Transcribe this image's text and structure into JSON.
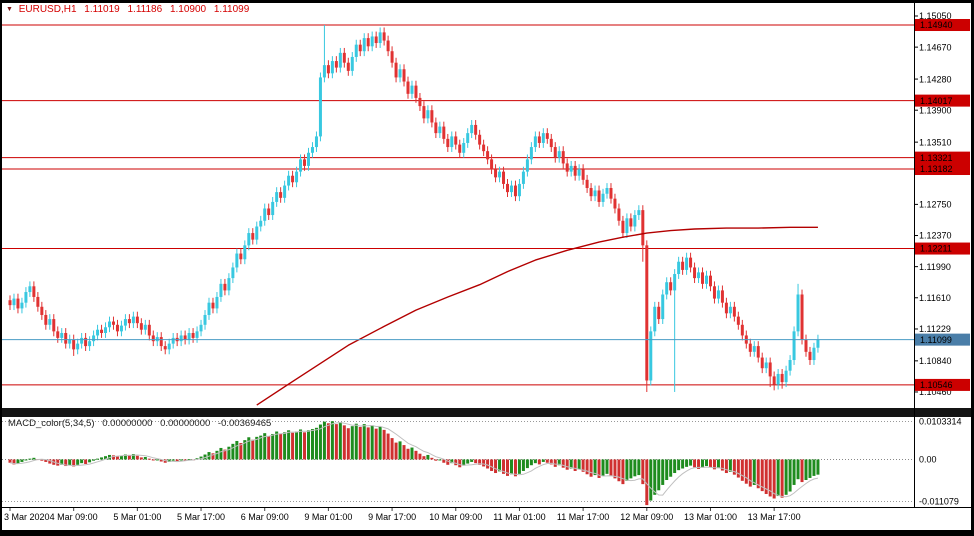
{
  "header": {
    "symbol": "EURUSD,H1",
    "open": "1.11019",
    "high": "1.11186",
    "low": "1.10900",
    "close": "1.11099"
  },
  "colors": {
    "candle_up": "#38C8E0",
    "candle_down": "#E03232",
    "level": "#CC0000",
    "bid_line": "#4A9BC4",
    "bid_badge": "#4A7EA8",
    "ma": "#B30000",
    "macd_up": "#1E8C1E",
    "macd_down": "#D03030",
    "macd_signal": "#C0C0C0",
    "title": "#D40000"
  },
  "chart_data": {
    "type": "candlestick",
    "symbol": "EURUSD",
    "timeframe": "H1",
    "title": "EURUSD,H1 1.11019 1.11186 1.10900 1.11099",
    "x_labels": [
      "3 Mar 2020",
      "4 Mar 09:00",
      "5 Mar 01:00",
      "5 Mar 17:00",
      "6 Mar 09:00",
      "9 Mar 01:00",
      "9 Mar 17:00",
      "10 Mar 09:00",
      "11 Mar 01:00",
      "11 Mar 17:00",
      "12 Mar 09:00",
      "13 Mar 01:00",
      "13 Mar 17:00"
    ],
    "bars_per_label": 16,
    "price_axis_ticks": [
      "1.15050",
      "1.14670",
      "1.14280",
      "1.13900",
      "1.13510",
      "1.12750",
      "1.12370",
      "1.11990",
      "1.11610",
      "1.11229",
      "1.10840",
      "1.10460"
    ],
    "levels": [
      {
        "price": 1.1494,
        "label": "1.14940"
      },
      {
        "price": 1.14017,
        "label": "1.14017"
      },
      {
        "price": 1.13321,
        "label": "1.13321"
      },
      {
        "price": 1.13182,
        "label": "1.13182"
      },
      {
        "price": 1.12211,
        "label": "1.12211"
      },
      {
        "price": 1.10546,
        "label": "1.10546"
      }
    ],
    "bid": {
      "price": 1.11099,
      "label": "1.11099"
    },
    "first_open": 1.1158,
    "default_wick": 0.0006,
    "closes": [
      1.1152,
      1.116,
      1.1148,
      1.1155,
      1.1168,
      1.1175,
      1.1162,
      1.115,
      1.114,
      1.1128,
      1.1135,
      1.112,
      1.1112,
      1.1118,
      1.1105,
      1.111,
      1.1098,
      1.1105,
      1.1112,
      1.1102,
      1.1108,
      1.1115,
      1.1122,
      1.1118,
      1.1125,
      1.1132,
      1.1128,
      1.112,
      1.1127,
      1.1135,
      1.113,
      1.1138,
      1.113,
      1.1122,
      1.1128,
      1.1115,
      1.1108,
      1.1113,
      1.1102,
      1.1098,
      1.1105,
      1.1112,
      1.1108,
      1.1115,
      1.111,
      1.1118,
      1.1112,
      1.112,
      1.1128,
      1.114,
      1.1155,
      1.1148,
      1.1162,
      1.1178,
      1.117,
      1.1185,
      1.1198,
      1.1215,
      1.1208,
      1.1225,
      1.124,
      1.1232,
      1.1248,
      1.1255,
      1.127,
      1.1262,
      1.1278,
      1.129,
      1.1283,
      1.1298,
      1.131,
      1.1302,
      1.1315,
      1.133,
      1.1322,
      1.1338,
      1.1345,
      1.1358,
      1.143,
      1.1445,
      1.1435,
      1.145,
      1.1442,
      1.146,
      1.1448,
      1.1438,
      1.1455,
      1.147,
      1.1462,
      1.1478,
      1.1468,
      1.148,
      1.1472,
      1.1485,
      1.1475,
      1.1462,
      1.1448,
      1.143,
      1.144,
      1.1425,
      1.141,
      1.142,
      1.1405,
      1.1395,
      1.138,
      1.139,
      1.1375,
      1.1362,
      1.137,
      1.1355,
      1.1345,
      1.1358,
      1.1348,
      1.1338,
      1.135,
      1.1362,
      1.1372,
      1.136,
      1.1348,
      1.134,
      1.133,
      1.1318,
      1.1308,
      1.1315,
      1.13,
      1.129,
      1.1298,
      1.1285,
      1.13,
      1.1315,
      1.133,
      1.1345,
      1.1358,
      1.135,
      1.1362,
      1.1355,
      1.1345,
      1.1332,
      1.134,
      1.1325,
      1.1315,
      1.1322,
      1.131,
      1.1318,
      1.1305,
      1.1295,
      1.1285,
      1.1292,
      1.1278,
      1.1288,
      1.1295,
      1.1282,
      1.127,
      1.1255,
      1.124,
      1.1258,
      1.1248,
      1.1262,
      1.1268,
      1.1225,
      1.106,
      1.112,
      1.115,
      1.1135,
      1.1165,
      1.118,
      1.117,
      1.119,
      1.1205,
      1.1195,
      1.121,
      1.1198,
      1.1185,
      1.1192,
      1.1178,
      1.1188,
      1.1175,
      1.116,
      1.117,
      1.1155,
      1.1142,
      1.115,
      1.1138,
      1.1128,
      1.1115,
      1.1105,
      1.1095,
      1.1102,
      1.1088,
      1.1075,
      1.1082,
      1.1065,
      1.1055,
      1.1068,
      1.1058,
      1.1072,
      1.1085,
      1.112,
      1.1165,
      1.111,
      1.1095,
      1.1085,
      1.11,
      1.11099
    ],
    "wick_overrides": {
      "16": {
        "low": 1.109
      },
      "79": {
        "high": 1.1494
      },
      "159": {
        "low": 1.1205
      },
      "160": {
        "low": 1.1046
      },
      "167": {
        "low": 1.1046
      },
      "191": {
        "low": 1.1052
      },
      "192": {
        "low": 1.1048
      },
      "194": {
        "low": 1.105
      },
      "198": {
        "high": 1.1178
      }
    },
    "ma_line": {
      "points": [
        [
          62,
          1.103
        ],
        [
          72,
          1.1062
        ],
        [
          85,
          1.1103
        ],
        [
          94,
          1.1126
        ],
        [
          102,
          1.1146
        ],
        [
          110,
          1.1162
        ],
        [
          118,
          1.1177
        ],
        [
          125,
          1.1193
        ],
        [
          132,
          1.1207
        ],
        [
          140,
          1.1219
        ],
        [
          148,
          1.1229
        ],
        [
          154,
          1.1235
        ],
        [
          160,
          1.124
        ],
        [
          166,
          1.1243
        ],
        [
          172,
          1.1245
        ],
        [
          180,
          1.1246
        ],
        [
          188,
          1.1246
        ],
        [
          196,
          1.1247
        ],
        [
          203,
          1.1247
        ]
      ]
    },
    "macd": {
      "label": "MACD_color(5,34,5)",
      "value_labels": [
        "0.00000000",
        "0.00000000",
        "-0.00369465"
      ],
      "scale_max": 0.0103314,
      "scale_max_label": "0.0103314",
      "zero_label": "0.00",
      "scale_min": -0.011079,
      "scale_min_label": "-0.011079",
      "values": [
        -0.0008,
        -0.0012,
        -0.001,
        -0.0006,
        -0.0002,
        0.0002,
        0.0004,
        0.0001,
        -0.0003,
        -0.0006,
        -0.001,
        -0.0013,
        -0.0015,
        -0.0013,
        -0.0016,
        -0.0014,
        -0.0017,
        -0.0013,
        -0.0009,
        -0.0011,
        -0.0007,
        -0.0003,
        0.0002,
        0.0005,
        0.0008,
        0.0011,
        0.001,
        0.0007,
        0.0009,
        0.0012,
        0.0011,
        0.0013,
        0.0009,
        0.0005,
        0.0006,
        0.0002,
        -0.0002,
        -0.0001,
        -0.0005,
        -0.0008,
        -0.0006,
        -0.0003,
        -0.0004,
        -0.0001,
        -0.0002,
        0.0001,
        0.0,
        0.0003,
        0.0007,
        0.0012,
        0.0018,
        0.0015,
        0.0021,
        0.0028,
        0.0024,
        0.0031,
        0.0038,
        0.0045,
        0.004,
        0.0047,
        0.0054,
        0.0048,
        0.0055,
        0.0058,
        0.0064,
        0.0057,
        0.0062,
        0.0068,
        0.0063,
        0.0066,
        0.0071,
        0.0065,
        0.0068,
        0.0073,
        0.0066,
        0.0071,
        0.0074,
        0.0077,
        0.0085,
        0.0092,
        0.0088,
        0.0093,
        0.0086,
        0.0091,
        0.0083,
        0.0076,
        0.0081,
        0.0087,
        0.0079,
        0.0086,
        0.0078,
        0.0083,
        0.0075,
        0.008,
        0.0072,
        0.0063,
        0.0052,
        0.0041,
        0.0044,
        0.0035,
        0.0026,
        0.0029,
        0.0021,
        0.0014,
        0.0008,
        0.0011,
        0.0004,
        -0.0003,
        -0.0001,
        -0.0008,
        -0.0013,
        -0.0009,
        -0.0014,
        -0.0019,
        -0.0015,
        -0.001,
        -0.0006,
        -0.0009,
        -0.0013,
        -0.0017,
        -0.0022,
        -0.0028,
        -0.0033,
        -0.0029,
        -0.0035,
        -0.004,
        -0.0036,
        -0.0041,
        -0.0035,
        -0.0028,
        -0.0021,
        -0.0014,
        -0.0009,
        -0.0012,
        -0.0006,
        -0.0008,
        -0.0012,
        -0.0018,
        -0.0014,
        -0.002,
        -0.0025,
        -0.0022,
        -0.0028,
        -0.0024,
        -0.003,
        -0.0036,
        -0.0042,
        -0.0038,
        -0.0045,
        -0.004,
        -0.0035,
        -0.004,
        -0.0046,
        -0.0053,
        -0.006,
        -0.0052,
        -0.0046,
        -0.0041,
        -0.0038,
        -0.006,
        -0.0111,
        -0.01,
        -0.0086,
        -0.0075,
        -0.0062,
        -0.005,
        -0.0042,
        -0.0033,
        -0.0026,
        -0.0022,
        -0.0018,
        -0.0015,
        -0.0019,
        -0.0023,
        -0.002,
        -0.0016,
        -0.0019,
        -0.0024,
        -0.0021,
        -0.0027,
        -0.0033,
        -0.003,
        -0.0037,
        -0.0044,
        -0.0052,
        -0.0059,
        -0.0066,
        -0.0062,
        -0.007,
        -0.0077,
        -0.0084,
        -0.009,
        -0.0095,
        -0.0089,
        -0.0093,
        -0.0086,
        -0.0078,
        -0.0062,
        -0.0048,
        -0.0055,
        -0.005,
        -0.0045,
        -0.004,
        -0.0036946
      ]
    }
  }
}
